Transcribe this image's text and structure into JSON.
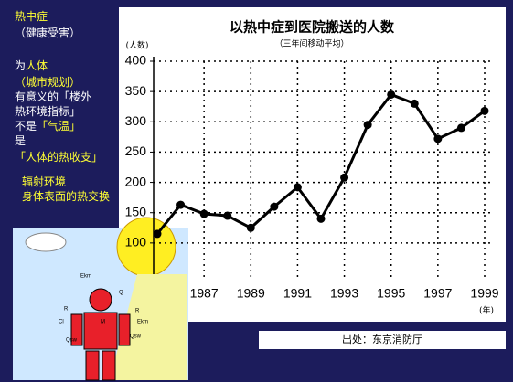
{
  "sidebar": {
    "lines": [
      [
        "热中症"
      ],
      [
        "（健康受害）"
      ],
      [
        "为",
        "人体"
      ],
      [
        "（城市规划）"
      ],
      [
        "有意义的「楼外"
      ],
      [
        "热环境指标」"
      ],
      [
        "不是",
        "「气温」"
      ],
      [
        "是"
      ],
      [
        "「人体的热收支」"
      ],
      [
        "辐射环境"
      ],
      [
        "身体表面的热交换"
      ]
    ]
  },
  "illustration": {
    "labels": [
      "Ekm",
      "Ekm",
      "M",
      "R",
      "R",
      "Q",
      "Qsw",
      "Qsw",
      "Cl"
    ]
  },
  "source": "出处：东京消防厅",
  "chart_data": {
    "type": "line",
    "title": "以热中症到医院搬送的人数",
    "subtitle": "（三年间移动平均）",
    "y_label": "(人数)",
    "x_label": "(年)",
    "x": [
      1985,
      1986,
      1987,
      1988,
      1989,
      1990,
      1991,
      1992,
      1993,
      1994,
      1995,
      1996,
      1997,
      1998,
      1999
    ],
    "series": [
      {
        "name": "人数",
        "color": "#000000",
        "values": [
          115,
          163,
          148,
          145,
          125,
          160,
          192,
          140,
          208,
          295,
          345,
          330,
          272,
          290,
          318
        ]
      }
    ],
    "xlim": [
      1985,
      1999
    ],
    "xticks": [
      1987,
      1989,
      1991,
      1993,
      1995,
      1997,
      1999
    ],
    "ylim": [
      50,
      400
    ],
    "yticks": [
      100,
      150,
      200,
      250,
      300,
      350,
      400
    ],
    "grid": true
  }
}
